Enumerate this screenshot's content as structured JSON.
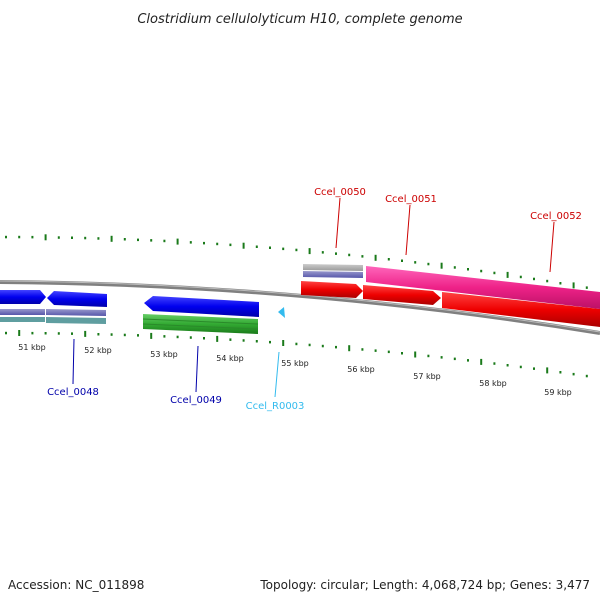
{
  "title": "Clostridium cellulolyticum H10, complete genome",
  "footer": {
    "accession": "Accession: NC_011898",
    "stats": "Topology: circular; Length: 4,068,724 bp; Genes: 3,477"
  },
  "kbp_labels": [
    "51 kbp",
    "52 kbp",
    "53 kbp",
    "54 kbp",
    "55 kbp",
    "56 kbp",
    "57 kbp",
    "58 kbp",
    "59 kbp"
  ],
  "genes": [
    {
      "id": "Ccel_0048",
      "color": "#0000aa"
    },
    {
      "id": "Ccel_0049",
      "color": "#0000aa"
    },
    {
      "id": "Ccel_R0003",
      "color": "#33bbee"
    },
    {
      "id": "Ccel_0050",
      "color": "#cc0000"
    },
    {
      "id": "Ccel_0051",
      "color": "#cc0000"
    },
    {
      "id": "Ccel_0052",
      "color": "#cc0000"
    }
  ],
  "colors": {
    "tick": "#1a7a1a",
    "backbone": "#888888",
    "blue_gene": "#0000ee",
    "green_gene": "#33aa33",
    "red_gene": "#ee0000",
    "pink_gene": "#ee2288",
    "rna_gene": "#33bbee",
    "annotation_blue": "#6666aa",
    "annotation_grey": "#aaaaaa"
  }
}
